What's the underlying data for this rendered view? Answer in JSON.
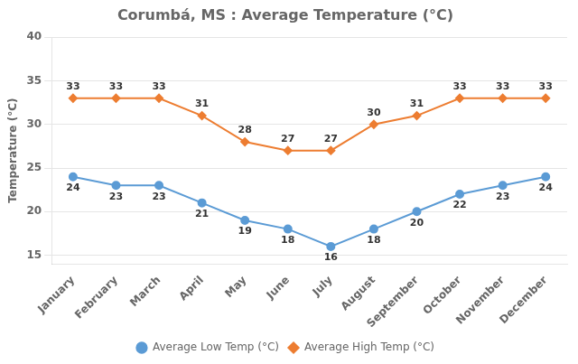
{
  "chart_data": {
    "type": "line",
    "title": "Corumbá, MS : Average Temperature (°C)",
    "y_label": "Temperature (°C)",
    "categories": [
      "January",
      "February",
      "March",
      "April",
      "May",
      "June",
      "July",
      "August",
      "September",
      "October",
      "November",
      "December"
    ],
    "series": [
      {
        "name": "Average Low Temp (°C)",
        "color": "#5B9BD5",
        "marker": "circle",
        "values": [
          24,
          23,
          23,
          21,
          19,
          18,
          16,
          18,
          20,
          22,
          23,
          24
        ]
      },
      {
        "name": "Average High Temp (°C)",
        "color": "#ED7D31",
        "marker": "diamond",
        "values": [
          33,
          33,
          33,
          31,
          28,
          27,
          27,
          30,
          31,
          33,
          33,
          33
        ]
      }
    ],
    "ylim": [
      14,
      40
    ],
    "yticks": [
      15,
      20,
      25,
      30,
      35,
      40
    ],
    "grid": true,
    "legend": "bottom",
    "data_labels": true
  }
}
